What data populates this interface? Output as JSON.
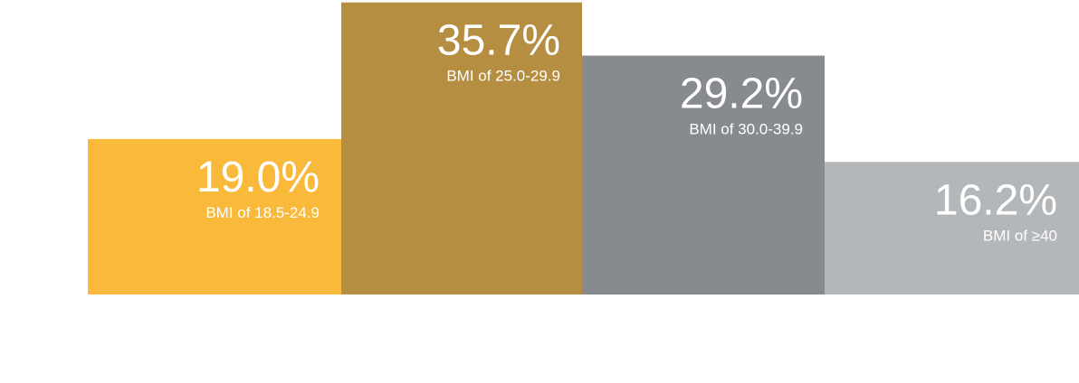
{
  "chart_data": {
    "type": "bar",
    "title": "",
    "xlabel": "",
    "ylabel": "",
    "categories": [
      "BMI of 18.5-24.9",
      "BMI of 25.0-29.9",
      "BMI of 30.0-39.9",
      "BMI of ≥40"
    ],
    "values": [
      19.0,
      35.7,
      29.2,
      16.2
    ],
    "value_labels": [
      "19.0%",
      "35.7%",
      "29.2%",
      "16.2%"
    ],
    "ylim": [
      0,
      36
    ],
    "grid": false,
    "legend": "none",
    "colors": [
      "#F9B93A",
      "#B58E41",
      "#878B90",
      "#B4B7BA"
    ],
    "icons": [
      "person-silhouette-icon",
      "person-silhouette-icon",
      "person-silhouette-icon",
      "person-silhouette-icon"
    ]
  }
}
